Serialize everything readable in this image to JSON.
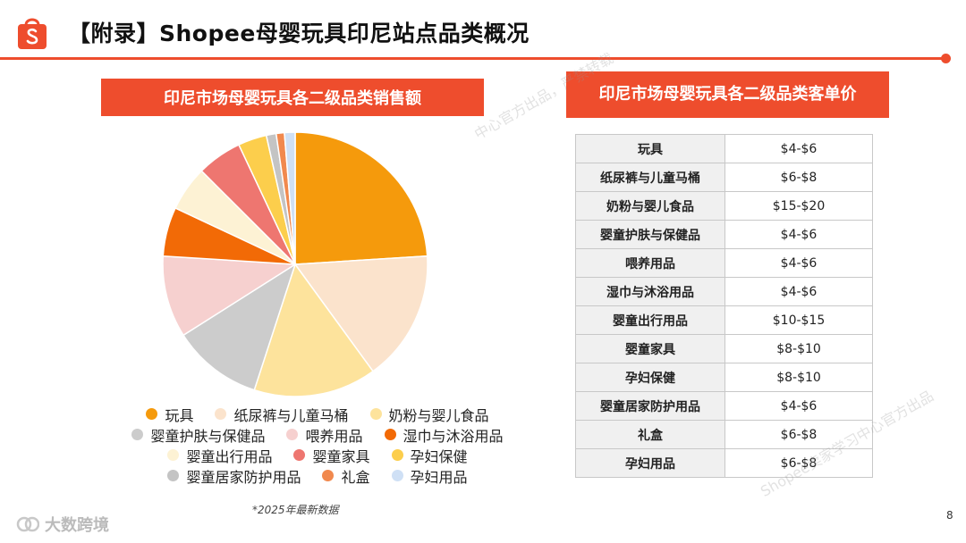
{
  "header": {
    "title": "【附录】Shopee母婴玩具印尼站点品类概况"
  },
  "left_panel": {
    "banner": "印尼市场母婴玩具各二级品类销售额",
    "note": "*2025年最新数据"
  },
  "right_panel": {
    "banner": "印尼市场母婴玩具各二级品类客单价",
    "rows": [
      {
        "category": "玩具",
        "price": "$4-$6"
      },
      {
        "category": "纸尿裤与儿童马桶",
        "price": "$6-$8"
      },
      {
        "category": "奶粉与婴儿食品",
        "price": "$15-$20"
      },
      {
        "category": "婴童护肤与保健品",
        "price": "$4-$6"
      },
      {
        "category": "喂养用品",
        "price": "$4-$6"
      },
      {
        "category": "湿巾与沐浴用品",
        "price": "$4-$6"
      },
      {
        "category": "婴童出行用品",
        "price": "$10-$15"
      },
      {
        "category": "婴童家具",
        "price": "$8-$10"
      },
      {
        "category": "孕妇保健",
        "price": "$8-$10"
      },
      {
        "category": "婴童居家防护用品",
        "price": "$4-$6"
      },
      {
        "category": "礼盒",
        "price": "$6-$8"
      },
      {
        "category": "孕妇用品",
        "price": "$6-$8"
      }
    ]
  },
  "chart_data": {
    "type": "pie",
    "title": "印尼市场母婴玩具各二级品类销售额",
    "legend_position": "bottom",
    "series": [
      {
        "name": "玩具",
        "value": 24.0,
        "color": "#f59a0c"
      },
      {
        "name": "纸尿裤与儿童马桶",
        "value": 16.0,
        "color": "#fbe3cc"
      },
      {
        "name": "奶粉与婴儿食品",
        "value": 15.0,
        "color": "#fde39c"
      },
      {
        "name": "婴童护肤与保健品",
        "value": 11.0,
        "color": "#cccccc"
      },
      {
        "name": "喂养用品",
        "value": 10.0,
        "color": "#f6d0cf"
      },
      {
        "name": "湿巾与沐浴用品",
        "value": 6.0,
        "color": "#f26a06"
      },
      {
        "name": "婴童出行用品",
        "value": 5.5,
        "color": "#fdf2d4"
      },
      {
        "name": "婴童家具",
        "value": 5.5,
        "color": "#ee7670"
      },
      {
        "name": "孕妇保健",
        "value": 3.5,
        "color": "#fcce4c"
      },
      {
        "name": "婴童居家防护用品",
        "value": 1.2,
        "color": "#c4c4c4"
      },
      {
        "name": "礼盒",
        "value": 1.0,
        "color": "#f1894e"
      },
      {
        "name": "孕妇用品",
        "value": 1.3,
        "color": "#cfe0f5"
      }
    ]
  },
  "footer": {
    "page_number": "8",
    "brand": "大数跨境"
  },
  "watermarks": [
    "中心官方出品，严禁转载",
    "Shopee卖家学习中心官方出品"
  ],
  "colors": {
    "accent": "#ee4d2d"
  }
}
